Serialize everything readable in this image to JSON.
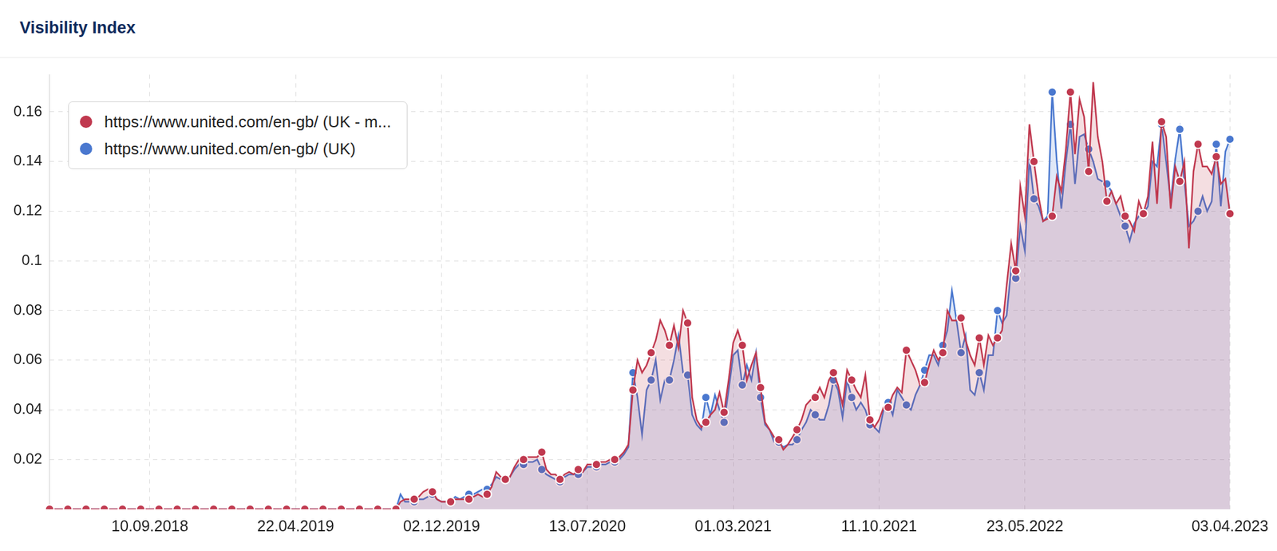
{
  "chart_data": {
    "type": "area",
    "title": "Visibility Index",
    "categories": [
      null,
      null,
      null,
      null,
      null,
      null,
      null,
      null,
      null,
      null,
      null,
      null,
      null,
      null,
      null,
      null,
      null,
      null,
      null,
      null,
      null,
      null,
      "10.09.2018",
      null,
      null,
      null,
      null,
      null,
      null,
      null,
      null,
      null,
      null,
      null,
      null,
      null,
      null,
      null,
      null,
      null,
      null,
      null,
      null,
      null,
      null,
      null,
      null,
      null,
      null,
      null,
      null,
      null,
      null,
      null,
      "22.04.2019",
      null,
      null,
      null,
      null,
      null,
      null,
      null,
      null,
      null,
      null,
      null,
      null,
      null,
      null,
      null,
      null,
      null,
      null,
      null,
      null,
      null,
      null,
      null,
      null,
      null,
      null,
      null,
      null,
      null,
      null,
      null,
      "02.12.2019",
      null,
      null,
      null,
      null,
      null,
      null,
      null,
      null,
      null,
      null,
      null,
      null,
      null,
      null,
      null,
      null,
      null,
      null,
      null,
      null,
      null,
      null,
      null,
      null,
      null,
      null,
      null,
      null,
      null,
      null,
      null,
      "13.07.2020",
      null,
      null,
      null,
      null,
      null,
      null,
      null,
      null,
      null,
      null,
      null,
      null,
      null,
      null,
      null,
      null,
      null,
      null,
      null,
      null,
      null,
      null,
      null,
      null,
      null,
      null,
      null,
      null,
      null,
      null,
      null,
      "01.03.2021",
      null,
      null,
      null,
      null,
      null,
      null,
      null,
      null,
      null,
      null,
      null,
      null,
      null,
      null,
      null,
      null,
      null,
      null,
      null,
      null,
      null,
      null,
      null,
      null,
      null,
      null,
      null,
      null,
      null,
      null,
      null,
      "11.10.2021",
      null,
      null,
      null,
      null,
      null,
      null,
      null,
      null,
      null,
      null,
      null,
      null,
      null,
      null,
      null,
      null,
      null,
      null,
      null,
      null,
      null,
      null,
      null,
      null,
      null,
      null,
      null,
      null,
      null,
      null,
      null,
      "23.05.2022",
      null,
      null,
      null,
      null,
      null,
      null,
      null,
      null,
      null,
      null,
      null,
      null,
      null,
      null,
      null,
      null,
      null,
      null,
      null,
      null,
      null,
      null,
      null,
      null,
      null,
      null,
      null,
      null,
      null,
      null,
      null,
      null,
      null,
      null,
      null,
      null,
      null,
      null,
      null,
      null,
      null,
      null,
      null,
      null,
      "03.04.2023"
    ],
    "series": [
      {
        "name": "https://www.united.com/en-gb/ (UK - m...",
        "color": "#c0394f",
        "marker": "circle",
        "values": [
          0,
          0,
          0,
          0,
          0,
          0,
          0,
          0,
          0,
          0,
          0,
          0,
          0,
          0,
          0,
          0,
          0,
          0,
          0,
          0,
          0,
          0,
          0,
          0,
          0,
          0,
          0,
          0,
          0,
          0,
          0,
          0,
          0,
          0,
          0,
          0,
          0,
          0,
          0,
          0,
          0,
          0,
          0,
          0,
          0,
          0,
          0,
          0,
          0,
          0,
          0,
          0,
          0,
          0,
          0,
          0,
          0,
          0,
          0,
          0,
          0,
          0,
          0,
          0,
          0,
          0,
          0,
          0,
          0,
          0,
          0,
          0,
          0,
          0,
          0,
          0,
          0,
          0.003,
          0.004,
          0.004,
          0.004,
          0.005,
          0.007,
          0.008,
          0.007,
          0.004,
          0.003,
          0.003,
          0.003,
          0.004,
          0.004,
          0.004,
          0.004,
          0.005,
          0.006,
          0.005,
          0.006,
          0.009,
          0.015,
          0.013,
          0.012,
          0.013,
          0.017,
          0.02,
          0.02,
          0.021,
          0.021,
          0.021,
          0.023,
          0.016,
          0.014,
          0.014,
          0.012,
          0.014,
          0.015,
          0.014,
          0.016,
          0.015,
          0.018,
          0.018,
          0.018,
          0.019,
          0.019,
          0.02,
          0.02,
          0.021,
          0.023,
          0.026,
          0.048,
          0.06,
          0.055,
          0.058,
          0.063,
          0.068,
          0.076,
          0.072,
          0.066,
          0.074,
          0.065,
          0.08,
          0.075,
          0.045,
          0.036,
          0.033,
          0.035,
          0.038,
          0.04,
          0.047,
          0.039,
          0.052,
          0.067,
          0.072,
          0.066,
          0.052,
          0.058,
          0.063,
          0.049,
          0.035,
          0.032,
          0.029,
          0.028,
          0.024,
          0.026,
          0.029,
          0.032,
          0.036,
          0.042,
          0.044,
          0.045,
          0.049,
          0.045,
          0.052,
          0.055,
          0.05,
          0.042,
          0.056,
          0.052,
          0.048,
          0.045,
          0.054,
          0.036,
          0.033,
          0.036,
          0.041,
          0.041,
          0.046,
          0.049,
          0.047,
          0.064,
          0.06,
          0.056,
          0.05,
          0.051,
          0.058,
          0.064,
          0.06,
          0.063,
          0.08,
          0.076,
          0.076,
          0.077,
          0.068,
          0.062,
          0.058,
          0.069,
          0.058,
          0.07,
          0.066,
          0.069,
          0.072,
          0.09,
          0.107,
          0.096,
          0.13,
          0.118,
          0.155,
          0.14,
          0.126,
          0.116,
          0.117,
          0.118,
          0.134,
          0.128,
          0.145,
          0.168,
          0.143,
          0.165,
          0.158,
          0.136,
          0.172,
          0.15,
          0.14,
          0.124,
          0.128,
          0.123,
          0.126,
          0.118,
          0.116,
          0.112,
          0.124,
          0.119,
          0.126,
          0.148,
          0.123,
          0.156,
          0.15,
          0.121,
          0.138,
          0.132,
          0.14,
          0.105,
          0.136,
          0.147,
          0.138,
          0.138,
          0.135,
          0.142,
          0.131,
          0.133,
          0.119
        ]
      },
      {
        "name": "https://www.united.com/en-gb/ (UK)",
        "color": "#4a78cf",
        "marker": "circle",
        "values": [
          0,
          0,
          0,
          0,
          0,
          0,
          0,
          0,
          0,
          0,
          0,
          0,
          0,
          0,
          0,
          0,
          0,
          0,
          0,
          0,
          0,
          0,
          0,
          0,
          0,
          0,
          0,
          0,
          0,
          0,
          0,
          0,
          0,
          0,
          0,
          0,
          0,
          0,
          0,
          0,
          0,
          0,
          0,
          0,
          0,
          0,
          0,
          0,
          0,
          0,
          0,
          0,
          0,
          0,
          0,
          0,
          0,
          0,
          0,
          0,
          0,
          0,
          0,
          0,
          0,
          0,
          0,
          0,
          0,
          0,
          0,
          0,
          0,
          0,
          0,
          0,
          0,
          0.006,
          0.003,
          0.003,
          0.003,
          0.004,
          0.004,
          0.005,
          0.006,
          0.004,
          0.003,
          0.003,
          0.003,
          0.005,
          0.004,
          0.005,
          0.006,
          0.006,
          0.007,
          0.008,
          0.008,
          0.01,
          0.013,
          0.012,
          0.012,
          0.013,
          0.016,
          0.018,
          0.018,
          0.019,
          0.019,
          0.02,
          0.016,
          0.014,
          0.013,
          0.012,
          0.011,
          0.013,
          0.014,
          0.014,
          0.014,
          0.015,
          0.017,
          0.017,
          0.017,
          0.018,
          0.018,
          0.019,
          0.019,
          0.02,
          0.022,
          0.025,
          0.055,
          0.045,
          0.03,
          0.048,
          0.052,
          0.06,
          0.044,
          0.052,
          0.052,
          0.06,
          0.07,
          0.055,
          0.054,
          0.038,
          0.034,
          0.032,
          0.045,
          0.038,
          0.046,
          0.04,
          0.035,
          0.048,
          0.062,
          0.064,
          0.05,
          0.058,
          0.052,
          0.063,
          0.045,
          0.034,
          0.032,
          0.027,
          0.027,
          0.025,
          0.026,
          0.026,
          0.028,
          0.032,
          0.035,
          0.04,
          0.038,
          0.036,
          0.036,
          0.042,
          0.052,
          0.048,
          0.037,
          0.052,
          0.045,
          0.04,
          0.043,
          0.04,
          0.034,
          0.033,
          0.031,
          0.04,
          0.043,
          0.038,
          0.048,
          0.045,
          0.042,
          0.04,
          0.046,
          0.05,
          0.056,
          0.062,
          0.062,
          0.058,
          0.066,
          0.072,
          0.088,
          0.076,
          0.063,
          0.07,
          0.048,
          0.046,
          0.055,
          0.048,
          0.062,
          0.062,
          0.08,
          0.075,
          0.078,
          0.097,
          0.093,
          0.114,
          0.104,
          0.141,
          0.125,
          0.122,
          0.116,
          0.118,
          0.168,
          0.14,
          0.121,
          0.14,
          0.155,
          0.131,
          0.15,
          0.151,
          0.145,
          0.14,
          0.133,
          0.132,
          0.131,
          0.128,
          0.123,
          0.118,
          0.114,
          0.108,
          0.115,
          0.118,
          0.119,
          0.122,
          0.14,
          0.138,
          0.155,
          0.14,
          0.124,
          0.141,
          0.153,
          0.132,
          0.114,
          0.116,
          0.12,
          0.126,
          0.12,
          0.124,
          0.147,
          0.122,
          0.144,
          0.149
        ]
      }
    ],
    "ylim": [
      0,
      0.175
    ],
    "yticks": [
      0.02,
      0.04,
      0.06,
      0.08,
      0.1,
      0.12,
      0.14,
      0.16
    ],
    "grid": true,
    "legend": "top-left"
  }
}
